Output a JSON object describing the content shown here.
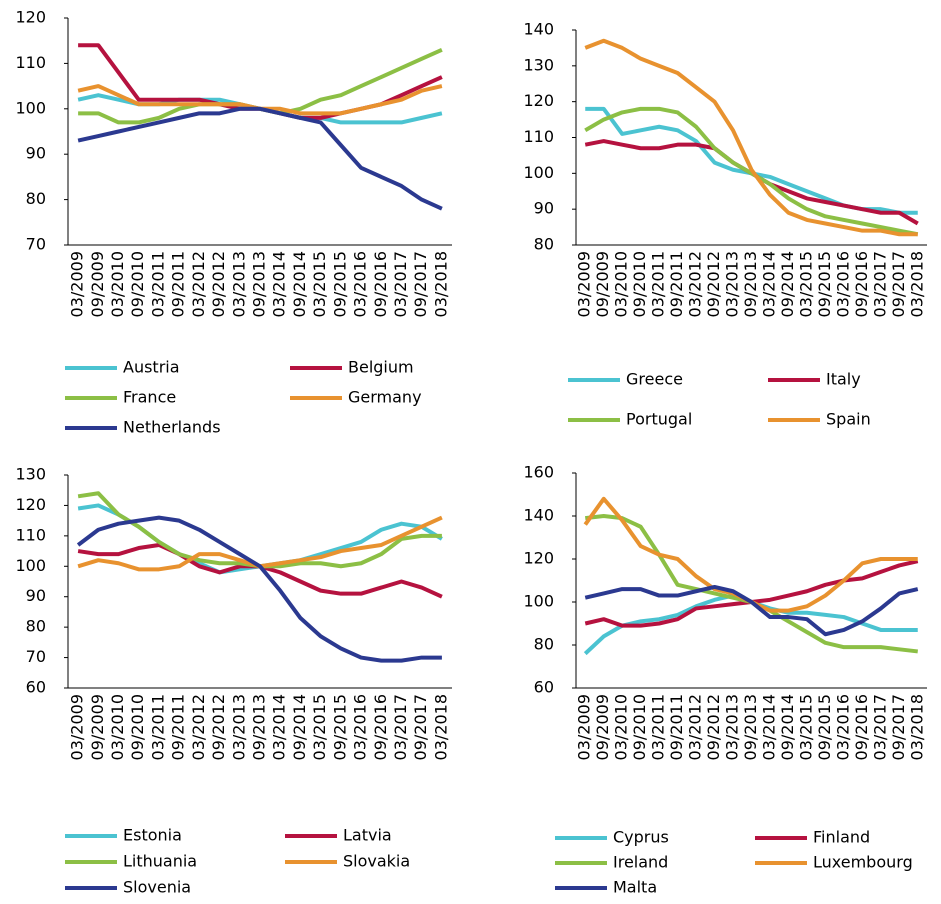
{
  "chart_data": [
    {
      "type": "line",
      "categories": [
        "03/2009",
        "09/2009",
        "03/2010",
        "09/2010",
        "03/2011",
        "09/2011",
        "03/2012",
        "09/2012",
        "03/2013",
        "09/2013",
        "03/2014",
        "09/2014",
        "03/2015",
        "09/2015",
        "03/2016",
        "09/2016",
        "03/2017",
        "09/2017",
        "03/2018"
      ],
      "ylim": [
        70,
        120
      ],
      "yticks": [
        70,
        80,
        90,
        100,
        110,
        120
      ],
      "series": [
        {
          "name": "Austria",
          "color": "#4bc3d1",
          "values": [
            102,
            103,
            102,
            101,
            101,
            102,
            102,
            102,
            101,
            100,
            99,
            98,
            98,
            97,
            97,
            97,
            97,
            98,
            99
          ]
        },
        {
          "name": "Belgium",
          "color": "#b5123f",
          "values": [
            114,
            114,
            108,
            102,
            102,
            102,
            102,
            101,
            100,
            100,
            99,
            98,
            98,
            99,
            100,
            101,
            103,
            105,
            107
          ]
        },
        {
          "name": "France",
          "color": "#8cbf45",
          "values": [
            99,
            99,
            97,
            97,
            98,
            100,
            101,
            101,
            101,
            100,
            99,
            100,
            102,
            103,
            105,
            107,
            109,
            111,
            113
          ]
        },
        {
          "name": "Germany",
          "color": "#e8922f",
          "values": [
            104,
            105,
            103,
            101,
            101,
            101,
            101,
            101,
            101,
            100,
            100,
            99,
            99,
            99,
            100,
            101,
            102,
            104,
            105
          ]
        },
        {
          "name": "Netherlands",
          "color": "#2b3990",
          "values": [
            93,
            94,
            95,
            96,
            97,
            98,
            99,
            99,
            100,
            100,
            99,
            98,
            97,
            92,
            87,
            85,
            83,
            80,
            78
          ]
        }
      ]
    },
    {
      "type": "line",
      "categories": [
        "03/2009",
        "09/2009",
        "03/2010",
        "09/2010",
        "03/2011",
        "09/2011",
        "03/2012",
        "09/2012",
        "03/2013",
        "09/2013",
        "03/2014",
        "09/2014",
        "03/2015",
        "09/2015",
        "03/2016",
        "09/2016",
        "03/2017",
        "09/2017",
        "03/2018"
      ],
      "ylim": [
        80,
        140
      ],
      "yticks": [
        80,
        90,
        100,
        110,
        120,
        130,
        140
      ],
      "series": [
        {
          "name": "Greece",
          "color": "#4bc3d1",
          "values": [
            118,
            118,
            111,
            112,
            113,
            112,
            109,
            103,
            101,
            100,
            99,
            97,
            95,
            93,
            91,
            90,
            90,
            89,
            89
          ]
        },
        {
          "name": "Italy",
          "color": "#b5123f",
          "values": [
            108,
            109,
            108,
            107,
            107,
            108,
            108,
            107,
            103,
            100,
            97,
            95,
            93,
            92,
            91,
            90,
            89,
            89,
            86
          ]
        },
        {
          "name": "Portugal",
          "color": "#8cbf45",
          "values": [
            112,
            115,
            117,
            118,
            118,
            117,
            113,
            107,
            103,
            100,
            97,
            93,
            90,
            88,
            87,
            86,
            85,
            84,
            83
          ]
        },
        {
          "name": "Spain",
          "color": "#e8922f",
          "values": [
            135,
            137,
            135,
            132,
            130,
            128,
            124,
            120,
            112,
            101,
            94,
            89,
            87,
            86,
            85,
            84,
            84,
            83,
            83
          ]
        }
      ]
    },
    {
      "type": "line",
      "categories": [
        "03/2009",
        "09/2009",
        "03/2010",
        "09/2010",
        "03/2011",
        "09/2011",
        "03/2012",
        "09/2012",
        "03/2013",
        "09/2013",
        "03/2014",
        "09/2014",
        "03/2015",
        "09/2015",
        "03/2016",
        "09/2016",
        "03/2017",
        "09/2017",
        "03/2018"
      ],
      "ylim": [
        60,
        130
      ],
      "yticks": [
        60,
        70,
        80,
        90,
        100,
        110,
        120,
        130
      ],
      "series": [
        {
          "name": "Estonia",
          "color": "#4bc3d1",
          "values": [
            119,
            120,
            117,
            113,
            108,
            104,
            101,
            98,
            99,
            100,
            101,
            102,
            104,
            106,
            108,
            112,
            114,
            113,
            109
          ]
        },
        {
          "name": "Latvia",
          "color": "#b5123f",
          "values": [
            105,
            104,
            104,
            106,
            107,
            104,
            100,
            98,
            100,
            100,
            98,
            95,
            92,
            91,
            91,
            93,
            95,
            93,
            90
          ]
        },
        {
          "name": "Lithuania",
          "color": "#8cbf45",
          "values": [
            123,
            124,
            117,
            113,
            108,
            104,
            102,
            101,
            101,
            100,
            100,
            101,
            101,
            100,
            101,
            104,
            109,
            110,
            110
          ]
        },
        {
          "name": "Slovakia",
          "color": "#e8922f",
          "values": [
            100,
            102,
            101,
            99,
            99,
            100,
            104,
            104,
            102,
            100,
            101,
            102,
            103,
            105,
            106,
            107,
            110,
            113,
            116
          ]
        },
        {
          "name": "Slovenia",
          "color": "#2b3990",
          "values": [
            107,
            112,
            114,
            115,
            116,
            115,
            112,
            108,
            104,
            100,
            92,
            83,
            77,
            73,
            70,
            69,
            69,
            70,
            70
          ]
        }
      ]
    },
    {
      "type": "line",
      "categories": [
        "03/2009",
        "09/2009",
        "03/2010",
        "09/2010",
        "03/2011",
        "09/2011",
        "03/2012",
        "09/2012",
        "03/2013",
        "09/2013",
        "03/2014",
        "09/2014",
        "03/2015",
        "09/2015",
        "03/2016",
        "09/2016",
        "03/2017",
        "09/2017",
        "03/2018"
      ],
      "ylim": [
        60,
        160
      ],
      "yticks": [
        60,
        80,
        100,
        120,
        140,
        160
      ],
      "series": [
        {
          "name": "Cyprus",
          "color": "#4bc3d1",
          "values": [
            76,
            84,
            89,
            91,
            92,
            94,
            98,
            101,
            103,
            100,
            97,
            95,
            95,
            94,
            93,
            90,
            87,
            87,
            87
          ]
        },
        {
          "name": "Finland",
          "color": "#b5123f",
          "values": [
            90,
            92,
            89,
            89,
            90,
            92,
            97,
            98,
            99,
            100,
            101,
            103,
            105,
            108,
            110,
            111,
            114,
            117,
            119
          ]
        },
        {
          "name": "Ireland",
          "color": "#8cbf45",
          "values": [
            139,
            140,
            139,
            135,
            122,
            108,
            106,
            104,
            102,
            100,
            96,
            91,
            86,
            81,
            79,
            79,
            79,
            78,
            77
          ]
        },
        {
          "name": "Luxembourg",
          "color": "#e8922f",
          "values": [
            136,
            148,
            138,
            126,
            122,
            120,
            112,
            106,
            104,
            100,
            96,
            96,
            98,
            103,
            110,
            118,
            120,
            120,
            120
          ]
        },
        {
          "name": "Malta",
          "color": "#2b3990",
          "values": [
            102,
            104,
            106,
            106,
            103,
            103,
            105,
            107,
            105,
            100,
            93,
            93,
            92,
            85,
            87,
            91,
            97,
            104,
            106
          ]
        }
      ]
    }
  ]
}
